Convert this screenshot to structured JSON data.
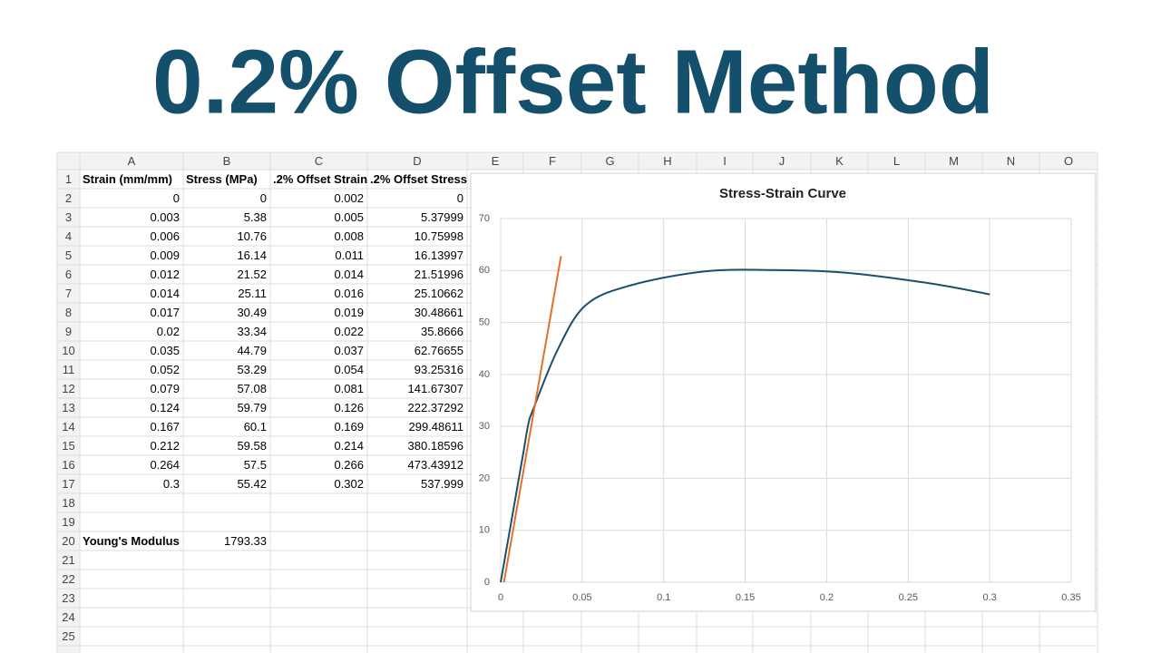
{
  "title": "0.2% Offset Method",
  "sheet": {
    "column_headers": [
      "A",
      "B",
      "C",
      "D",
      "E",
      "F",
      "G",
      "H",
      "I",
      "J",
      "K",
      "L",
      "M",
      "N",
      "O"
    ],
    "row_headers": [
      1,
      2,
      3,
      4,
      5,
      6,
      7,
      8,
      9,
      10,
      11,
      12,
      13,
      14,
      15,
      16,
      17,
      18,
      19,
      20,
      21,
      22,
      23,
      24,
      25
    ],
    "rows": [
      [
        "Strain (mm/mm)",
        "Stress (MPa)",
        ".2% Offset Strain",
        ".2% Offset Stress"
      ],
      [
        0,
        0,
        0.002,
        0
      ],
      [
        0.003,
        5.38,
        0.005,
        5.37999
      ],
      [
        0.006,
        10.76,
        0.008,
        10.75998
      ],
      [
        0.009,
        16.14,
        0.011,
        16.13997
      ],
      [
        0.012,
        21.52,
        0.014,
        21.51996
      ],
      [
        0.014,
        25.11,
        0.016,
        25.10662
      ],
      [
        0.017,
        30.49,
        0.019,
        30.48661
      ],
      [
        0.02,
        33.34,
        0.022,
        35.8666
      ],
      [
        0.035,
        44.79,
        0.037,
        62.76655
      ],
      [
        0.052,
        53.29,
        0.054,
        93.25316
      ],
      [
        0.079,
        57.08,
        0.081,
        141.67307
      ],
      [
        0.124,
        59.79,
        0.126,
        222.37292
      ],
      [
        0.167,
        60.1,
        0.169,
        299.48611
      ],
      [
        0.212,
        59.58,
        0.214,
        380.18596
      ],
      [
        0.264,
        57.5,
        0.266,
        473.43912
      ],
      [
        0.3,
        55.42,
        0.302,
        537.999
      ],
      [],
      [],
      [
        "Young's Modulus",
        1793.33
      ],
      [],
      [],
      [],
      [],
      []
    ]
  },
  "chart_data": {
    "type": "scatter",
    "title": "Stress-Strain Curve",
    "xlim": [
      0,
      0.35
    ],
    "xticks": [
      0,
      0.05,
      0.1,
      0.15,
      0.2,
      0.25,
      0.3,
      0.35
    ],
    "ylim": [
      0,
      70
    ],
    "yticks": [
      0,
      10,
      20,
      30,
      40,
      50,
      60,
      70
    ],
    "grid": true,
    "series": [
      {
        "color": "#1b4f6e",
        "x": [
          0,
          0.003,
          0.006,
          0.009,
          0.012,
          0.014,
          0.017,
          0.02,
          0.035,
          0.052,
          0.079,
          0.124,
          0.167,
          0.212,
          0.264,
          0.3
        ],
        "values": [
          0,
          5.38,
          10.76,
          16.14,
          21.52,
          25.11,
          30.49,
          33.34,
          44.79,
          53.29,
          57.08,
          59.79,
          60.1,
          59.58,
          57.5,
          55.42
        ]
      },
      {
        "color": "#e0702a",
        "x": [
          0.002,
          0.005,
          0.008,
          0.011,
          0.014,
          0.016,
          0.019,
          0.022,
          0.037
        ],
        "values": [
          0,
          5.37999,
          10.75998,
          16.13997,
          21.51996,
          25.10662,
          30.48661,
          35.8666,
          62.76655
        ]
      }
    ]
  }
}
